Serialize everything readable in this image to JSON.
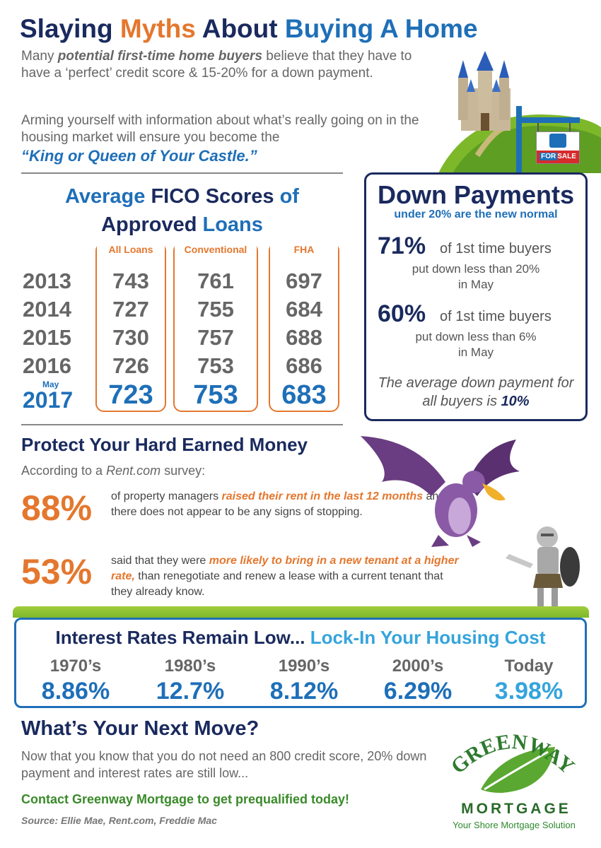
{
  "title": {
    "w1": "Slaying",
    "w2": "Myths",
    "w3": "About",
    "w4": "Buying A Home"
  },
  "intro": {
    "p1_a": "Many ",
    "p1_b": "potential first-time home buyers",
    "p1_c": " believe that they have to have a ‘perfect’ credit score & 15-20% for a down payment.",
    "p2": "Arming yourself with information about what’s really going on in the housing market will ensure you become the",
    "emph": "“King or Queen of Your Castle.”"
  },
  "sign": {
    "label_for": "FOR",
    "label_sale": "SALE"
  },
  "fico": {
    "title_a": "Average",
    "title_b": "FICO Scores",
    "title_c": "of",
    "title_d": "Approved",
    "title_e": "Loans",
    "may_label": "May",
    "years": [
      "2013",
      "2014",
      "2015",
      "2016",
      "2017"
    ],
    "columns": [
      {
        "header": "All Loans",
        "values": [
          "743",
          "727",
          "730",
          "726",
          "723"
        ]
      },
      {
        "header": "Conventional",
        "values": [
          "761",
          "755",
          "757",
          "753",
          "753"
        ]
      },
      {
        "header": "FHA",
        "values": [
          "697",
          "684",
          "688",
          "686",
          "683"
        ]
      }
    ]
  },
  "down_payments": {
    "title": "Down Payments",
    "subtitle": "under 20% are the new normal",
    "stat1": {
      "pct": "71%",
      "of": "of 1st time buyers",
      "line2": "put down less than 20%",
      "line3": "in May"
    },
    "stat2": {
      "pct": "60%",
      "of": "of 1st time buyers",
      "line2": "put down less than 6%",
      "line3": "in May"
    },
    "avg_a": "The average down payment for all buyers is ",
    "avg_b": "10%"
  },
  "protect": {
    "title": "Protect Your Hard Earned Money",
    "sub_a": "According to a ",
    "sub_b": "Rent.com",
    "sub_c": " survey:",
    "stat1": {
      "pct": "88%",
      "a": "of property managers ",
      "b": "raised their rent in the last 12 months",
      "c": " and there does not appear to be any signs of stopping."
    },
    "stat2": {
      "pct": "53%",
      "a": "said that they were ",
      "b": "more likely to bring in a new tenant at a higher rate,",
      "c": " than renegotiate and renew a lease with a current tenant that they already know."
    }
  },
  "interest": {
    "title_a": "Interest Rates Remain Low...",
    "title_b": "Lock-In Your Housing Cost",
    "items": [
      {
        "decade": "1970’s",
        "rate": "8.86%",
        "color": "#1e6fb8"
      },
      {
        "decade": "1980’s",
        "rate": "12.7%",
        "color": "#1e6fb8"
      },
      {
        "decade": "1990’s",
        "rate": "8.12%",
        "color": "#1e6fb8"
      },
      {
        "decade": "2000’s",
        "rate": "6.29%",
        "color": "#1e6fb8"
      },
      {
        "decade": "Today",
        "rate": "3.98%",
        "color": "#35a4dc"
      }
    ]
  },
  "next": {
    "title": "What’s Your Next Move?",
    "body": "Now that you know that you do not need an 800 credit score, 20% down payment and interest rates are still low...",
    "cta": "Contact Greenway Mortgage to get prequalified today!",
    "source": "Source: Ellie Mae, Rent.com, Freddie Mac"
  },
  "logo": {
    "word": "GREENWAY",
    "mortgage": "MORTGAGE",
    "tagline": "Your Shore Mortgage Solution"
  },
  "colors": {
    "navy": "#1a2a5e",
    "orange": "#e4772e",
    "blue": "#1e6fb8",
    "light_blue": "#35a4dc",
    "green": "#7db82a"
  }
}
